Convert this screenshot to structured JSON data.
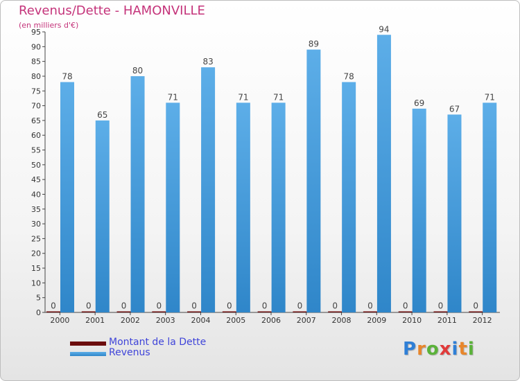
{
  "title": "Revenus/Dette - HAMONVILLE",
  "subtitle": "(en milliers d'€)",
  "colors": {
    "debt": "#6b0d0d",
    "revenue_light": "#5daee8",
    "revenue_dark": "#2f86c9",
    "title": "#c4337a",
    "legend_text": "#3f44d9"
  },
  "chart_data": {
    "type": "bar",
    "title": "Revenus/Dette - HAMONVILLE",
    "subtitle": "(en milliers d'€)",
    "xlabel": "",
    "ylabel": "",
    "ylim": [
      0,
      95
    ],
    "yticks": [
      0,
      5,
      10,
      15,
      20,
      25,
      30,
      35,
      40,
      45,
      50,
      55,
      60,
      65,
      70,
      75,
      80,
      85,
      90,
      95
    ],
    "grid": false,
    "legend_position": "bottom-left",
    "categories": [
      "2000",
      "2001",
      "2002",
      "2003",
      "2004",
      "2005",
      "2006",
      "2007",
      "2008",
      "2009",
      "2010",
      "2011",
      "2012"
    ],
    "series": [
      {
        "name": "Montant de la Dette",
        "values": [
          0,
          0,
          0,
          0,
          0,
          0,
          0,
          0,
          0,
          0,
          0,
          0,
          0
        ]
      },
      {
        "name": "Revenus",
        "values": [
          78,
          65,
          80,
          71,
          83,
          71,
          71,
          89,
          78,
          94,
          69,
          67,
          71
        ]
      }
    ]
  },
  "legend": [
    {
      "label": "Montant de la Dette"
    },
    {
      "label": "Revenus"
    }
  ],
  "brand": {
    "letters": [
      "P",
      "r",
      "o",
      "x",
      "i",
      "t",
      "i"
    ],
    "colors": [
      "#2f7fd6",
      "#e8862b",
      "#5bb23a",
      "#e13a3a",
      "#2f7fd6",
      "#e8862b",
      "#5bb23a"
    ]
  }
}
